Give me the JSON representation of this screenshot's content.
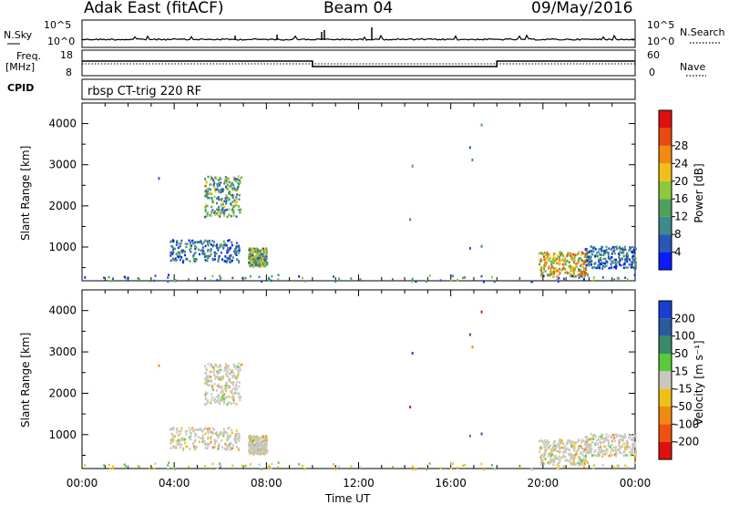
{
  "header": {
    "station": "Adak East (fitACF)",
    "beam": "Beam 04",
    "date": "09/May/2016"
  },
  "strip_labels": {
    "nsky": "N.Sky",
    "nsearch": "N.Search",
    "freq": "Freq.",
    "freq_unit": "[MHz]",
    "nave": "Nave",
    "cpid": "CPID",
    "cpid_value": "rbsp CT-trig 220 RF",
    "nsky_ticks": [
      "10^5",
      "10^0"
    ],
    "nsearch_ticks": [
      "10^5",
      "10^0"
    ],
    "freq_ticks": [
      "18",
      "8"
    ],
    "nave_ticks": [
      "60",
      "0"
    ]
  },
  "chart_data": [
    {
      "type": "heatmap",
      "name": "power",
      "ylabel": "Slant Range [km]",
      "xlabel": "Time UT",
      "x_ticks": [
        "00:00",
        "04:00",
        "08:00",
        "12:00",
        "16:00",
        "20:00",
        "00:00"
      ],
      "x_range_hours": [
        0,
        24
      ],
      "y_ticks": [
        1000,
        2000,
        3000,
        4000
      ],
      "ylim": [
        180,
        4500
      ],
      "colorbar": {
        "label": "Power [dB]",
        "ticks": [
          4,
          8,
          12,
          16,
          20,
          24,
          28
        ],
        "range": [
          0,
          32
        ],
        "colors": [
          "#0a1bff",
          "#2a56b8",
          "#3e8a8a",
          "#4fa05a",
          "#8cc83a",
          "#f0c018",
          "#f08a10",
          "#e84a10",
          "#e01010"
        ]
      },
      "scatter_regions": [
        {
          "t": [
            5.3,
            6.9
          ],
          "r": [
            1750,
            2750
          ],
          "level": "mixed-high"
        },
        {
          "t": [
            3.8,
            6.8
          ],
          "r": [
            650,
            1200
          ],
          "level": "mixed-low"
        },
        {
          "t": [
            7.2,
            8.0
          ],
          "r": [
            550,
            1000
          ],
          "level": "mixed-high"
        },
        {
          "t": [
            19.8,
            21.9
          ],
          "r": [
            300,
            900
          ],
          "level": "strong"
        },
        {
          "t": [
            21.8,
            24.0
          ],
          "r": [
            500,
            1050
          ],
          "level": "mixed-low"
        },
        {
          "t": [
            0,
            24
          ],
          "r": [
            180,
            350
          ],
          "level": "ground-scatter"
        }
      ]
    },
    {
      "type": "heatmap",
      "name": "velocity",
      "ylabel": "Slant Range [km]",
      "xlabel": "Time UT",
      "x_ticks": [
        "00:00",
        "04:00",
        "08:00",
        "12:00",
        "16:00",
        "20:00",
        "00:00"
      ],
      "x_range_hours": [
        0,
        24
      ],
      "y_ticks": [
        1000,
        2000,
        3000,
        4000
      ],
      "ylim": [
        180,
        4500
      ],
      "colorbar": {
        "label": "Velocity [m s⁻¹]",
        "ticks": [
          200,
          100,
          50,
          15,
          -15,
          -50,
          -100,
          -200
        ],
        "colors": [
          "#1a3fd0",
          "#2a5aa0",
          "#3a8a6a",
          "#5aca3a",
          "#c8c8c0",
          "#f0c018",
          "#f08a10",
          "#f05010",
          "#e01010"
        ]
      }
    }
  ]
}
